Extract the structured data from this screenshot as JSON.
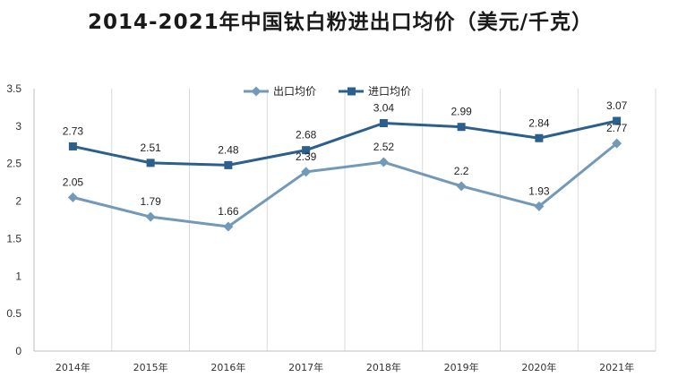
{
  "chart_data": {
    "type": "line",
    "title": "2014-2021年中国钛白粉进出口均价（美元/千克）",
    "categories": [
      "2014年",
      "2015年",
      "2016年",
      "2017年",
      "2018年",
      "2019年",
      "2020年",
      "2021年"
    ],
    "series": [
      {
        "name": "出口均价",
        "values": [
          2.05,
          1.79,
          1.66,
          2.39,
          2.52,
          2.2,
          1.93,
          2.77
        ],
        "color": "#7399b8",
        "marker": "diamond"
      },
      {
        "name": "进口均价",
        "values": [
          2.73,
          2.51,
          2.48,
          2.68,
          3.04,
          2.99,
          2.84,
          3.07
        ],
        "color": "#2b5f8e",
        "marker": "square"
      }
    ],
    "ylim": [
      0,
      3.5
    ],
    "yticks": [
      "0",
      "0.5",
      "1",
      "1.5",
      "2",
      "2.5",
      "3",
      "3.5"
    ],
    "grid": "vertical",
    "legend": "top-center"
  }
}
